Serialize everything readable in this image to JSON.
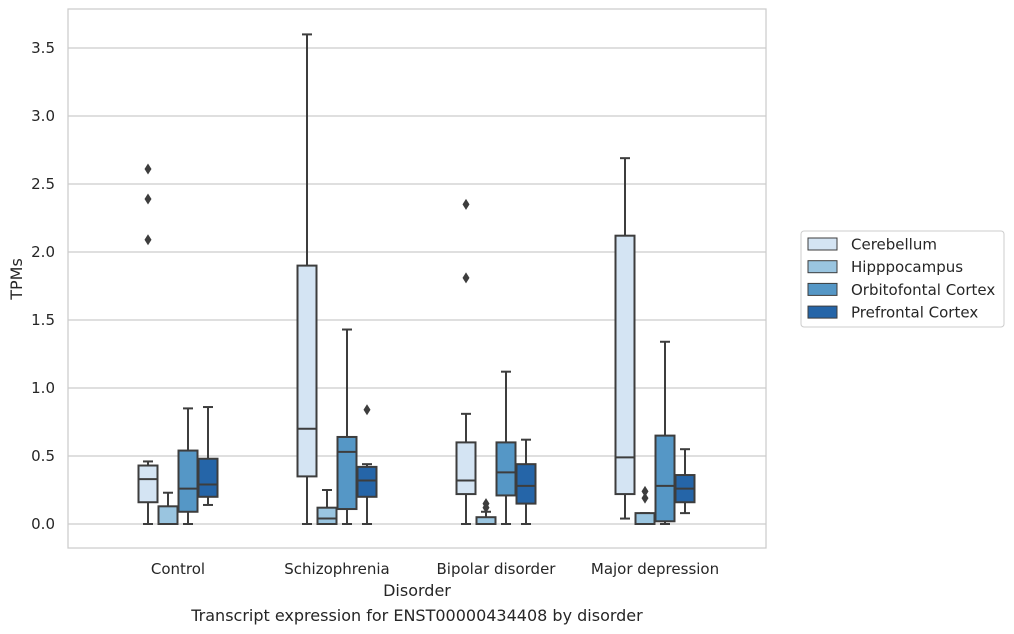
{
  "chart_data": {
    "type": "box",
    "title": "",
    "caption": "Transcript expression for ENST00000434408 by disorder",
    "xlabel": "Disorder",
    "ylabel": "TPMs",
    "ylim": [
      -0.17,
      3.76
    ],
    "yticks": [
      "0.0",
      "0.5",
      "1.0",
      "1.5",
      "2.0",
      "2.5",
      "3.0",
      "3.5"
    ],
    "ytick_values": [
      0,
      0.5,
      1.0,
      1.5,
      2.0,
      2.5,
      3.0,
      3.5
    ],
    "grid": "horizontal",
    "legend_position": "right",
    "categories": [
      "Control",
      "Schizophrenia",
      "Bipolar disorder",
      "Major depression"
    ],
    "series": [
      {
        "name": "Cerebellum",
        "color": "#d4e4f3",
        "boxes": [
          {
            "min": 0.0,
            "q1": 0.16,
            "median": 0.33,
            "q3": 0.43,
            "max": 0.46,
            "outliers": [
              2.09,
              2.39,
              2.61
            ]
          },
          {
            "min": 0.0,
            "q1": 0.35,
            "median": 0.7,
            "q3": 1.9,
            "max": 3.6,
            "outliers": []
          },
          {
            "min": 0.0,
            "q1": 0.22,
            "median": 0.32,
            "q3": 0.6,
            "max": 0.81,
            "outliers": [
              1.81,
              2.35
            ]
          },
          {
            "min": 0.04,
            "q1": 0.22,
            "median": 0.49,
            "q3": 2.12,
            "max": 2.69,
            "outliers": []
          }
        ]
      },
      {
        "name": "Hipppocampus",
        "color": "#9ac5e0",
        "boxes": [
          {
            "min": 0.0,
            "q1": 0.0,
            "median": 0.0,
            "q3": 0.13,
            "max": 0.23,
            "outliers": []
          },
          {
            "min": 0.0,
            "q1": 0.0,
            "median": 0.04,
            "q3": 0.12,
            "max": 0.25,
            "outliers": []
          },
          {
            "min": 0.0,
            "q1": 0.0,
            "median": 0.0,
            "q3": 0.05,
            "max": 0.09,
            "outliers": [
              0.12,
              0.15
            ]
          },
          {
            "min": 0.0,
            "q1": 0.0,
            "median": 0.0,
            "q3": 0.08,
            "max": 0.08,
            "outliers": [
              0.19,
              0.24
            ]
          }
        ]
      },
      {
        "name": "Orbitofontal Cortex",
        "color": "#5597c6",
        "boxes": [
          {
            "min": 0.0,
            "q1": 0.09,
            "median": 0.26,
            "q3": 0.54,
            "max": 0.85,
            "outliers": []
          },
          {
            "min": 0.0,
            "q1": 0.11,
            "median": 0.53,
            "q3": 0.64,
            "max": 1.43,
            "outliers": []
          },
          {
            "min": 0.0,
            "q1": 0.21,
            "median": 0.38,
            "q3": 0.6,
            "max": 1.12,
            "outliers": []
          },
          {
            "min": 0.0,
            "q1": 0.02,
            "median": 0.28,
            "q3": 0.65,
            "max": 1.34,
            "outliers": []
          }
        ]
      },
      {
        "name": "Prefrontal Cortex",
        "color": "#2565a8",
        "boxes": [
          {
            "min": 0.14,
            "q1": 0.2,
            "median": 0.29,
            "q3": 0.48,
            "max": 0.86,
            "outliers": []
          },
          {
            "min": 0.0,
            "q1": 0.2,
            "median": 0.32,
            "q3": 0.42,
            "max": 0.44,
            "outliers": [
              0.84
            ]
          },
          {
            "min": 0.0,
            "q1": 0.15,
            "median": 0.28,
            "q3": 0.44,
            "max": 0.62,
            "outliers": []
          },
          {
            "min": 0.08,
            "q1": 0.16,
            "median": 0.26,
            "q3": 0.36,
            "max": 0.55,
            "outliers": []
          }
        ]
      }
    ]
  }
}
